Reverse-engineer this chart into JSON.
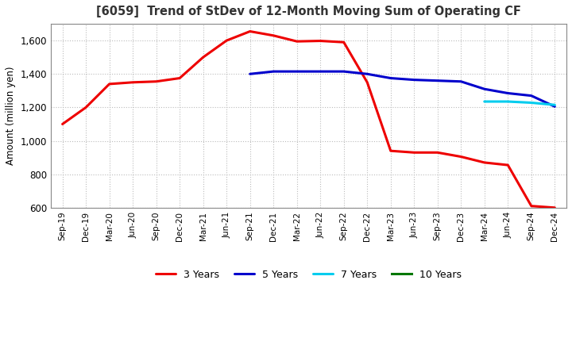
{
  "title": "[6059]  Trend of StDev of 12-Month Moving Sum of Operating CF",
  "ylabel": "Amount (million yen)",
  "background_color": "#ffffff",
  "plot_bg_color": "#ffffff",
  "grid_color": "#bbbbbb",
  "ylim": [
    600,
    1700
  ],
  "yticks": [
    600,
    800,
    1000,
    1200,
    1400,
    1600
  ],
  "x_labels": [
    "Sep-19",
    "Dec-19",
    "Mar-20",
    "Jun-20",
    "Sep-20",
    "Dec-20",
    "Mar-21",
    "Jun-21",
    "Sep-21",
    "Dec-21",
    "Mar-22",
    "Jun-22",
    "Sep-22",
    "Dec-22",
    "Mar-23",
    "Jun-23",
    "Sep-23",
    "Dec-23",
    "Mar-24",
    "Jun-24",
    "Sep-24",
    "Dec-24"
  ],
  "series_3yr": {
    "label": "3 Years",
    "color": "#ee0000",
    "data": [
      1100,
      1200,
      1340,
      1350,
      1355,
      1375,
      1500,
      1600,
      1655,
      1630,
      1595,
      1598,
      1590,
      1350,
      940,
      930,
      930,
      905,
      870,
      855,
      610,
      600
    ]
  },
  "series_5yr": {
    "label": "5 Years",
    "color": "#0000cc",
    "data": [
      null,
      null,
      null,
      null,
      null,
      null,
      null,
      null,
      1400,
      1415,
      1415,
      1415,
      1415,
      1400,
      1375,
      1365,
      1360,
      1355,
      1310,
      1285,
      1270,
      1205
    ]
  },
  "series_7yr": {
    "label": "7 Years",
    "color": "#00ccee",
    "data": [
      null,
      null,
      null,
      null,
      null,
      null,
      null,
      null,
      null,
      null,
      null,
      null,
      null,
      null,
      null,
      null,
      null,
      null,
      1235,
      1235,
      1228,
      1215
    ]
  },
  "series_10yr": {
    "label": "10 Years",
    "color": "#007700",
    "data": [
      null,
      null,
      null,
      null,
      null,
      null,
      null,
      null,
      null,
      null,
      null,
      null,
      null,
      null,
      null,
      null,
      null,
      null,
      null,
      null,
      null,
      null
    ]
  }
}
